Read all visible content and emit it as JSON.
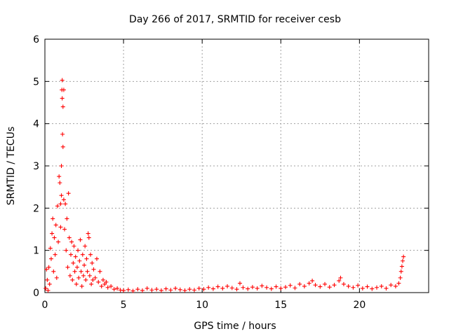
{
  "chart_data": {
    "type": "scatter",
    "title": "Day 266 of 2017, SRMTID for receiver cesb",
    "xlabel": "GPS time / hours",
    "ylabel": "SRMTID / TECUs",
    "xlim": [
      0,
      24.4
    ],
    "ylim": [
      0,
      6
    ],
    "x_ticks": [
      0,
      5,
      10,
      15,
      20
    ],
    "y_ticks": [
      0,
      1,
      2,
      3,
      4,
      5,
      6
    ],
    "x_tick_labels": [
      "0",
      "5",
      "10",
      "15",
      "20"
    ],
    "y_tick_labels": [
      "0",
      "1",
      "2",
      "3",
      "4",
      "5",
      "6"
    ],
    "grid": true,
    "marker": "+",
    "color": "#ff0000",
    "series": [
      {
        "name": "SRMTID",
        "points": [
          [
            0.05,
            0.1
          ],
          [
            0.1,
            0.55
          ],
          [
            0.15,
            0.3
          ],
          [
            0.2,
            0.05
          ],
          [
            0.25,
            0.6
          ],
          [
            0.3,
            0.2
          ],
          [
            0.35,
            1.05
          ],
          [
            0.4,
            0.8
          ],
          [
            0.45,
            1.4
          ],
          [
            0.5,
            1.75
          ],
          [
            0.55,
            0.5
          ],
          [
            0.6,
            1.3
          ],
          [
            0.65,
            0.9
          ],
          [
            0.7,
            1.6
          ],
          [
            0.75,
            0.35
          ],
          [
            0.8,
            2.05
          ],
          [
            0.85,
            1.2
          ],
          [
            0.9,
            2.75
          ],
          [
            0.95,
            2.6
          ],
          [
            1.0,
            2.1
          ],
          [
            1.0,
            1.55
          ],
          [
            1.05,
            3.0
          ],
          [
            1.05,
            2.3
          ],
          [
            1.08,
            4.8
          ],
          [
            1.1,
            5.03
          ],
          [
            1.1,
            4.6
          ],
          [
            1.12,
            3.75
          ],
          [
            1.15,
            3.45
          ],
          [
            1.15,
            4.4
          ],
          [
            1.2,
            2.2
          ],
          [
            1.2,
            4.8
          ],
          [
            1.25,
            1.5
          ],
          [
            1.3,
            2.1
          ],
          [
            1.35,
            1.0
          ],
          [
            1.4,
            1.75
          ],
          [
            1.45,
            0.6
          ],
          [
            1.5,
            2.35
          ],
          [
            1.55,
            1.3
          ],
          [
            1.6,
            0.4
          ],
          [
            1.65,
            0.9
          ],
          [
            1.7,
            1.2
          ],
          [
            1.75,
            0.3
          ],
          [
            1.8,
            0.7
          ],
          [
            1.85,
            1.1
          ],
          [
            1.9,
            0.5
          ],
          [
            1.95,
            0.85
          ],
          [
            2.0,
            0.2
          ],
          [
            2.05,
            0.6
          ],
          [
            2.1,
            1.0
          ],
          [
            2.15,
            0.35
          ],
          [
            2.2,
            0.75
          ],
          [
            2.25,
            1.25
          ],
          [
            2.3,
            0.5
          ],
          [
            2.35,
            0.15
          ],
          [
            2.4,
            0.9
          ],
          [
            2.45,
            0.4
          ],
          [
            2.5,
            0.65
          ],
          [
            2.55,
            1.1
          ],
          [
            2.6,
            0.3
          ],
          [
            2.65,
            0.8
          ],
          [
            2.7,
            0.5
          ],
          [
            2.75,
            1.4
          ],
          [
            2.8,
            1.3
          ],
          [
            2.85,
            0.4
          ],
          [
            2.9,
            0.9
          ],
          [
            2.95,
            0.2
          ],
          [
            3.0,
            0.7
          ],
          [
            3.05,
            0.3
          ],
          [
            3.1,
            0.55
          ],
          [
            3.2,
            0.35
          ],
          [
            3.3,
            0.8
          ],
          [
            3.4,
            0.25
          ],
          [
            3.5,
            0.5
          ],
          [
            3.6,
            0.15
          ],
          [
            3.7,
            0.3
          ],
          [
            3.8,
            0.2
          ],
          [
            3.9,
            0.25
          ],
          [
            4.0,
            0.12
          ],
          [
            4.2,
            0.15
          ],
          [
            4.4,
            0.08
          ],
          [
            4.6,
            0.1
          ],
          [
            4.8,
            0.06
          ],
          [
            5.0,
            0.05
          ],
          [
            5.3,
            0.07
          ],
          [
            5.6,
            0.04
          ],
          [
            5.9,
            0.08
          ],
          [
            6.2,
            0.05
          ],
          [
            6.5,
            0.1
          ],
          [
            6.8,
            0.06
          ],
          [
            7.1,
            0.08
          ],
          [
            7.4,
            0.05
          ],
          [
            7.7,
            0.09
          ],
          [
            8.0,
            0.06
          ],
          [
            8.3,
            0.1
          ],
          [
            8.6,
            0.07
          ],
          [
            8.9,
            0.05
          ],
          [
            9.2,
            0.08
          ],
          [
            9.5,
            0.06
          ],
          [
            9.8,
            0.1
          ],
          [
            10.1,
            0.08
          ],
          [
            10.4,
            0.12
          ],
          [
            10.7,
            0.09
          ],
          [
            11.0,
            0.14
          ],
          [
            11.3,
            0.1
          ],
          [
            11.6,
            0.15
          ],
          [
            11.9,
            0.11
          ],
          [
            12.2,
            0.08
          ],
          [
            12.4,
            0.22
          ],
          [
            12.6,
            0.12
          ],
          [
            12.9,
            0.09
          ],
          [
            13.2,
            0.13
          ],
          [
            13.5,
            0.1
          ],
          [
            13.8,
            0.16
          ],
          [
            14.1,
            0.12
          ],
          [
            14.4,
            0.09
          ],
          [
            14.7,
            0.14
          ],
          [
            15.0,
            0.1
          ],
          [
            15.3,
            0.13
          ],
          [
            15.6,
            0.17
          ],
          [
            15.9,
            0.11
          ],
          [
            16.2,
            0.2
          ],
          [
            16.5,
            0.15
          ],
          [
            16.8,
            0.22
          ],
          [
            17.0,
            0.28
          ],
          [
            17.2,
            0.18
          ],
          [
            17.5,
            0.14
          ],
          [
            17.8,
            0.2
          ],
          [
            18.1,
            0.13
          ],
          [
            18.4,
            0.18
          ],
          [
            18.7,
            0.28
          ],
          [
            18.8,
            0.35
          ],
          [
            19.0,
            0.2
          ],
          [
            19.3,
            0.15
          ],
          [
            19.6,
            0.12
          ],
          [
            19.9,
            0.17
          ],
          [
            20.2,
            0.1
          ],
          [
            20.5,
            0.14
          ],
          [
            20.8,
            0.09
          ],
          [
            21.1,
            0.12
          ],
          [
            21.4,
            0.15
          ],
          [
            21.7,
            0.1
          ],
          [
            22.0,
            0.18
          ],
          [
            22.3,
            0.15
          ],
          [
            22.5,
            0.22
          ],
          [
            22.6,
            0.35
          ],
          [
            22.65,
            0.5
          ],
          [
            22.7,
            0.62
          ],
          [
            22.75,
            0.75
          ],
          [
            22.8,
            0.85
          ]
        ]
      }
    ]
  }
}
